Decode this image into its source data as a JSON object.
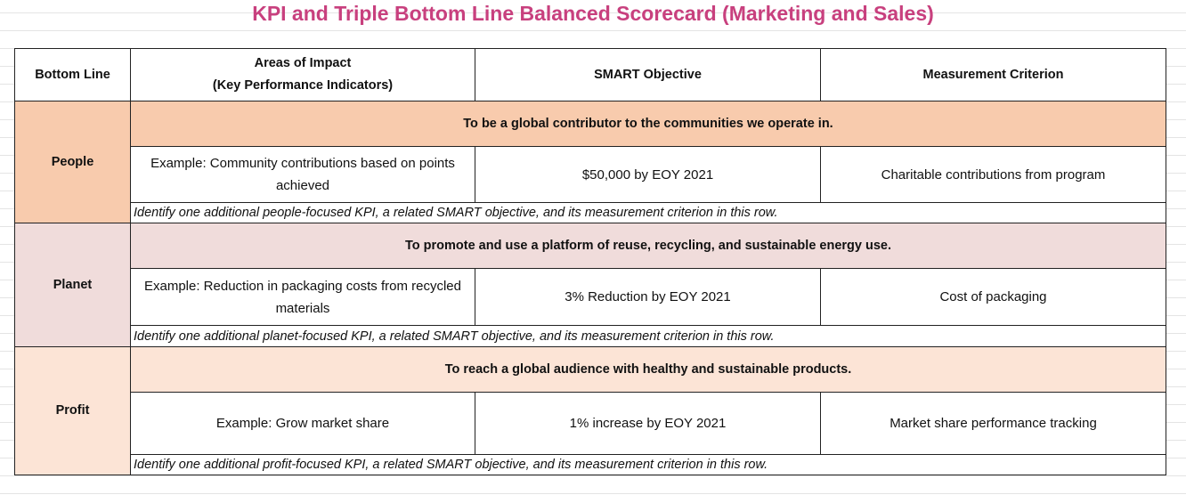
{
  "title": "KPI and Triple Bottom Line Balanced Scorecard (Marketing and Sales)",
  "table": {
    "header": [
      [
        "Bottom Line"
      ],
      [
        "Areas of Impact",
        "(Key Performance Indicators)"
      ],
      [
        "SMART Objective"
      ],
      [
        "Measurement Criterion"
      ]
    ],
    "sections": [
      {
        "bottom_line": "People",
        "objective": "To be a global contributor to the communities we operate in.",
        "example": [
          "Example: Community contributions based on points achieved",
          "$50,000 by EOY 2021",
          "Charitable contributions from program"
        ],
        "instruction": "Identify one additional people-focused KPI, a related SMART objective, and its measurement criterion in this row."
      },
      {
        "bottom_line": "Planet",
        "objective": "To promote and use a platform of reuse, recycling, and sustainable energy use.",
        "example": [
          "Example: Reduction in packaging costs from recycled materials",
          "3% Reduction by EOY 2021",
          "Cost of packaging"
        ],
        "instruction": "Identify one additional planet-focused KPI, a related SMART objective, and its measurement criterion in this row."
      },
      {
        "bottom_line": "Profit",
        "objective": "To reach a global audience with healthy and sustainable products.",
        "example": [
          "Example: Grow market share",
          "1% increase by EOY 2021",
          "Market share performance tracking"
        ],
        "instruction": "Identify one additional profit-focused KPI, a related SMART objective, and its measurement criterion in this row."
      }
    ]
  }
}
